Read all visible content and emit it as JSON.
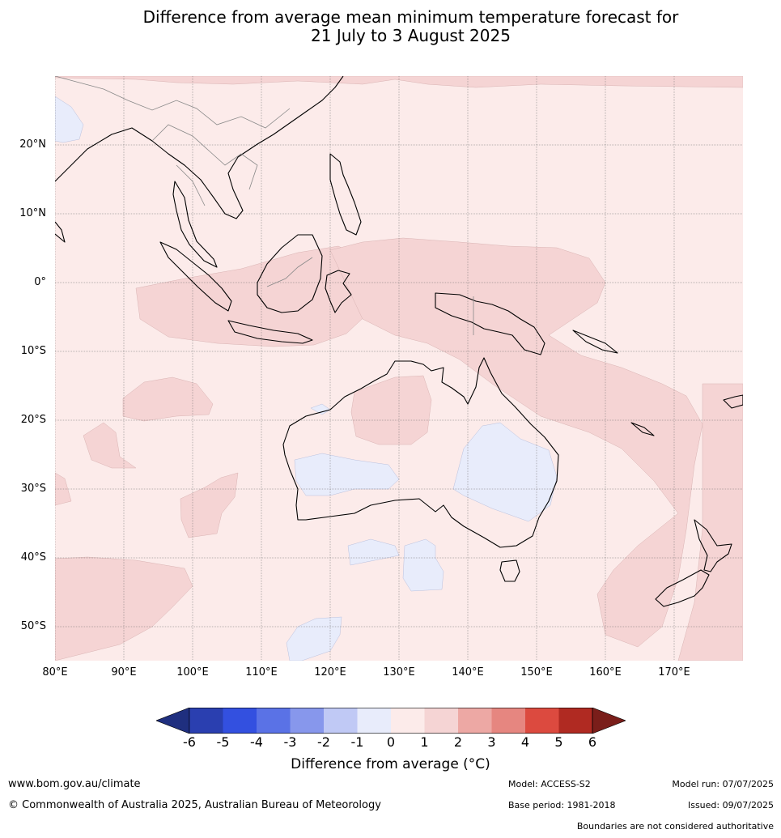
{
  "title_line1": "Difference from average mean minimum temperature forecast for",
  "title_line2": "21 July to 3 August 2025",
  "lat_labels": [
    "20°N",
    "10°N",
    "0°",
    "10°S",
    "20°S",
    "30°S",
    "40°S",
    "50°S"
  ],
  "lon_labels": [
    "80°E",
    "90°E",
    "100°E",
    "110°E",
    "120°E",
    "130°E",
    "140°E",
    "150°E",
    "160°E",
    "170°E"
  ],
  "colorbar": {
    "label": "Difference from average (°C)",
    "ticks": [
      "-6",
      "-5",
      "-4",
      "-3",
      "-2",
      "-1",
      "0",
      "1",
      "2",
      "3",
      "4",
      "5",
      "6"
    ],
    "colors": [
      "#1f2f7f",
      "#2a3fb0",
      "#3350e0",
      "#5a72e6",
      "#8797ec",
      "#c0c9f5",
      "#e8ecfb",
      "#fcebea",
      "#f5d4d4",
      "#eda8a4",
      "#e68680",
      "#dc4a3f",
      "#b02a22",
      "#7a1e1a"
    ]
  },
  "footer": {
    "website": "www.bom.gov.au/climate",
    "copyright": "© Commonwealth of Australia 2025, Australian Bureau of Meteorology",
    "model": "Model: ACCESS-S2",
    "base_period": "Base period: 1981-2018",
    "model_run": "Model run: 07/07/2025",
    "issued": "Issued: 09/07/2025",
    "disclaimer": "Boundaries are not considered authoritative"
  }
}
